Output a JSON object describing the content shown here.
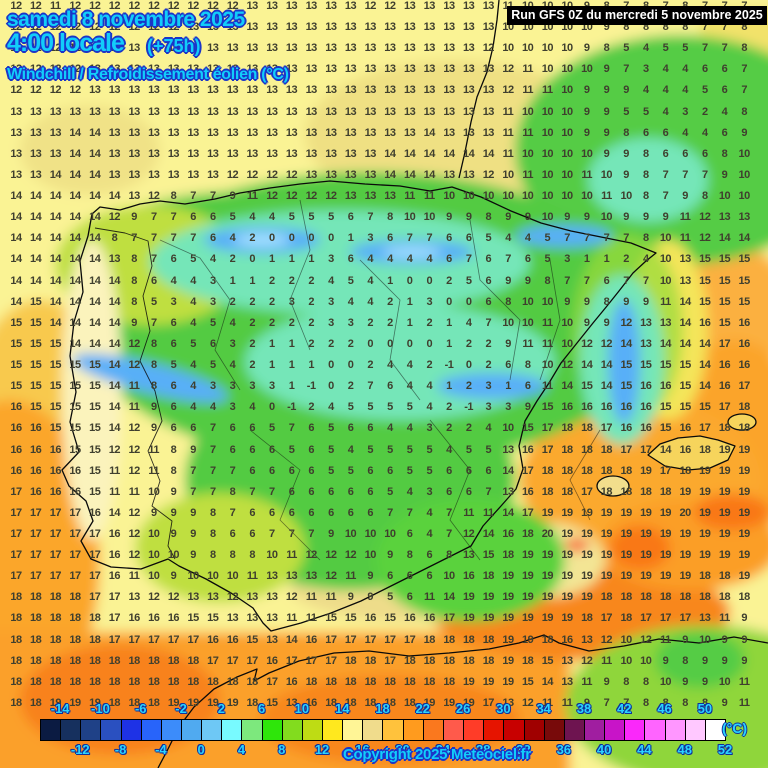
{
  "header": {
    "date_line": "samedi 8 novembre 2025",
    "time_line": "4:00 locale",
    "forecast_offset": "(+75h)",
    "parameter_line": "Windchill / Refroidissement éolien (°C)",
    "run_info": "Run GFS 0Z du mercredi 5 novembre 2025"
  },
  "footer": {
    "copyright": "Copyright 2025 Meteociel.fr"
  },
  "colors": {
    "title_text": "#12CDFA",
    "title_outline": "#1B35C8",
    "run_box_bg": "#000000",
    "run_box_text": "#FFFFFF",
    "value_text": "#3F3F2E",
    "scale_label_text": "#2AD4FF",
    "scale_label_outline": "#10309B",
    "sea_warm_yellow": "#FAF394",
    "sea_orange": "#FBA62B",
    "land_green": "#52CB42",
    "cold_aqua": "#74E6B8",
    "cold_blue": "#58AFF8",
    "mild_khaki": "#EFE083"
  },
  "scale": {
    "unit": "(°C)",
    "min": -16,
    "max": 52,
    "step_per_cell": 2,
    "top_labels": [
      "-14",
      "-10",
      "-6",
      "-2",
      "2",
      "6",
      "10",
      "14",
      "18",
      "22",
      "26",
      "30",
      "34",
      "38",
      "42",
      "46",
      "50"
    ],
    "bottom_labels": [
      "-12",
      "-8",
      "-4",
      "0",
      "4",
      "8",
      "12",
      "16",
      "20",
      "24",
      "28",
      "32",
      "36",
      "40",
      "44",
      "48",
      "52"
    ],
    "cells": [
      "#0B1B42",
      "#16305E",
      "#1F4187",
      "#2A50C0",
      "#1E32E6",
      "#2864FA",
      "#3C8CFA",
      "#50AAF0",
      "#6EC8F5",
      "#78FAFF",
      "#7DE87D",
      "#2EE60A",
      "#82DC1E",
      "#BEDC14",
      "#FFE81E",
      "#FFF596",
      "#F0DC8C",
      "#FFC23C",
      "#FF9B1E",
      "#FA781E",
      "#FF5A4B",
      "#FF3C28",
      "#E61400",
      "#C80000",
      "#A00000",
      "#780A0A",
      "#6E1450",
      "#A01EA0",
      "#C814C8",
      "#FA28FA",
      "#FF64FF",
      "#FF96FF",
      "#FFC8FF",
      "#FFFFFF"
    ]
  },
  "grid": {
    "description": "Windchill values (°C) at gridpoints, 38 columns x 34 rows",
    "rows": [
      "12 12 11 12 12 12 12 12 12 12 12 12 13 13 13 13 13 13 12 12 13 13 13 13 13 11 10 10 10 9 8 7 8 7 8 7 7 7",
      "12 12 12 12 12 12 12 12 12 13 13 13 13 13 13 13 13 13 13 13 13 13 13 13 13 10 10 10 10 10 9 8 8 8 8 7 7 8",
      "12 12 12 12 12 13 13 13 13 13 13 13 13 13 13 13 13 13 13 13 13 13 13 13 12 10 10 10 10 9 8 5 4 5 5 7 7 8",
      "12 12 12 12 13 13 13 13 13 13 13 13 13 13 13 13 13 13 13 13 13 13 13 13 13 12 11 10 10 10 9 7 3 4 4 6 6 7",
      "12 12 12 12 13 13 13 13 13 13 13 13 13 13 13 13 13 13 13 13 13 13 13 13 13 12 11 11 10 9 9 9 4 4 4 5 6 7",
      "13 13 13 13 13 13 13 13 13 13 13 13 13 13 13 13 13 13 13 13 13 13 13 13 13 11 10 10 10 9 9 5 5 4 3 2 4 8",
      "13 13 13 14 14 13 13 13 13 13 13 13 13 13 13 13 13 13 13 13 13 14 13 13 13 11 11 10 10 9 9 8 6 6 4 4 6 9",
      "13 13 13 14 14 13 13 13 13 13 13 13 13 13 13 13 13 13 13 14 14 14 14 14 14 11 10 10 10 10 9 9 8 6 6 6 8 10",
      "13 13 14 14 14 13 13 13 13 13 13 12 12 12 12 13 13 13 13 14 14 14 13 13 12 10 11 10 10 11 10 9 8 7 7 7 9 10",
      "14 14 14 14 14 14 13 12 8 7 7 9 11 12 12 12 12 13 13 13 11 11 10 10 10 10 10 10 10 10 11 10 8 7 9 8 10 10",
      "14 14 14 14 14 12 9 7 7 6 6 5 4 4 5 5 5 6 7 8 10 10 9 9 8 9 9 10 9 9 10 9 9 9 11 12 13 13",
      "14 14 14 14 14 8 7 7 7 7 6 4 2 0 0 0 0 1 3 6 7 7 6 6 5 4 4 5 7 7 7 7 8 10 11 12 14 14",
      "14 14 14 14 14 13 8 7 6 5 4 2 0 1 1 1 3 6 4 4 4 4 6 7 6 7 6 5 3 1 1 2 4 10 13 15 15 15",
      "14 14 14 14 14 14 8 6 4 4 3 1 1 2 2 2 4 5 4 1 0 0 2 5 6 9 9 8 7 7 6 7 7 10 13 15 15 15",
      "14 15 14 14 14 14 8 5 3 4 3 2 2 2 3 2 3 4 4 2 1 3 0 0 6 8 10 10 9 9 8 9 9 11 14 15 15 15",
      "15 15 14 14 14 14 9 7 6 4 5 4 2 2 2 2 3 3 2 2 1 2 1 4 7 10 10 11 10 9 9 12 13 13 14 16 15 16",
      "15 15 15 14 14 14 12 8 6 5 6 3 2 1 1 2 2 2 0 0 0 0 1 2 2 9 11 11 10 12 12 14 13 14 14 14 17 16",
      "15 15 15 15 15 14 12 8 5 4 5 4 2 1 1 1 0 0 2 4 4 2 -1 0 2 6 8 10 12 14 14 15 15 15 15 14 16 16",
      "15 15 15 15 15 14 11 8 6 4 3 3 3 3 1 -1 0 2 7 6 4 4 1 2 3 1 6 11 14 15 14 15 16 16 15 14 16 17",
      "16 15 15 15 15 14 11 9 6 4 4 3 4 0 -1 2 4 5 5 5 5 4 2 -1 3 3 9 15 16 16 16 16 16 15 15 15 17 18",
      "16 16 15 15 15 14 12 9 6 6 7 6 6 5 7 6 5 6 6 4 4 3 2 2 4 10 15 17 18 18 17 16 16 15 16 17 18 18",
      "16 16 16 15 15 12 12 11 8 9 7 6 6 6 5 6 5 4 5 5 5 5 4 5 5 13 16 17 18 18 18 17 17 14 16 18 19 19",
      "16 16 16 16 15 11 12 11 8 7 7 7 6 6 6 6 5 5 6 6 5 5 6 6 6 14 17 18 18 18 18 18 19 17 18 19 19 19",
      "17 16 16 16 15 11 11 10 9 7 7 8 7 7 6 6 6 6 6 5 4 3 6 6 7 13 16 18 18 17 18 18 18 18 19 19 19 19",
      "17 17 17 17 16 14 12 9 9 9 8 7 6 6 6 6 6 6 6 7 7 4 7 11 11 14 17 19 19 19 19 19 19 19 20 19 19 19",
      "17 17 17 17 17 16 12 10 9 9 8 6 6 7 7 7 9 10 10 10 6 4 7 12 14 16 18 20 19 19 19 19 19 19 19 19 19 19",
      "17 17 17 17 17 16 12 10 10 9 8 8 8 10 11 12 12 12 10 9 8 6 8 13 15 18 19 19 19 19 19 19 19 19 19 19 19 19",
      "17 17 17 17 17 16 11 10 9 10 10 10 11 13 13 13 12 11 9 6 6 6 10 16 18 19 19 19 19 19 19 19 19 19 19 18 18 19",
      "18 18 18 18 17 17 13 12 12 13 13 12 13 13 12 11 11 9 9 5 6 11 14 19 19 19 19 19 19 19 18 18 18 18 18 18 18 18",
      "18 18 18 18 18 17 16 16 16 15 15 13 13 13 11 11 15 15 16 15 16 16 17 19 19 19 19 19 19 18 17 18 17 17 17 13 11 9",
      "18 18 18 18 18 17 17 17 17 17 16 16 15 13 14 16 17 17 17 17 17 18 18 18 18 19 19 18 16 13 12 10 12 11 9 10 9 9",
      "18 18 18 18 18 18 18 18 18 18 17 17 17 16 17 17 17 18 18 17 18 18 18 18 18 19 18 15 13 12 11 10 10 9 8 9 9 9",
      "18 18 18 18 18 18 18 18 18 18 18 18 18 17 16 18 18 18 18 18 18 18 18 19 19 19 15 14 13 11 9 8 8 10 9 9 10 11",
      "18 18 19 19 19 18 18 18 19 19 19 19 18 15 13 16 18 18 18 18 18 19 19 19 17 13 12 11 11 9 7 7 8 8 8 8 9 11"
    ]
  }
}
